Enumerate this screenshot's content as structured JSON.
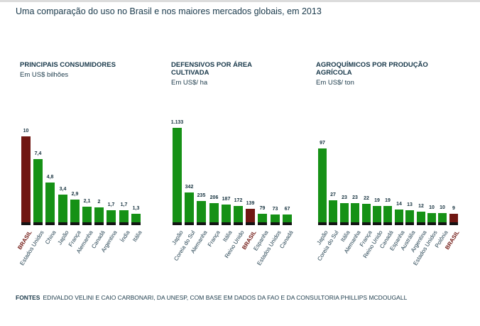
{
  "title": "Uma comparação do uso no Brasil e nos maiores mercados globais, em 2013",
  "footer": {
    "label": "FONTES",
    "text": "EDIVALDO VELINI E CAIO CARBONARI, DA UNESP, COM BASE EM DADOS DA FAO E DA CONSULTORIA PHILLIPS MCDOUGALL"
  },
  "colors": {
    "bar_green": "#169116",
    "bar_highlight_maroon": "#701712",
    "bar_base_black": "#141414",
    "text_dark_teal": "#18384a"
  },
  "highlight_category": "BRASIL",
  "chart_data": [
    {
      "type": "bar",
      "title": "PRINCIPAIS CONSUMIDORES",
      "subtitle": "Em US$ bilhões",
      "ylabel": "US$ bilhões",
      "legend_position": "none",
      "grid": false,
      "categories": [
        "BRASIL",
        "Estados Unidos",
        "China",
        "Japão",
        "França",
        "Alemanha",
        "Canadá",
        "Argentina",
        "Índia",
        "Itália"
      ],
      "values": [
        10,
        7.4,
        4.8,
        3.4,
        2.9,
        2.1,
        2,
        1.7,
        1.7,
        1.3
      ],
      "value_labels": [
        "10",
        "7,4",
        "4,8",
        "3,4",
        "2,9",
        "2,1",
        "2",
        "1,7",
        "1,7",
        "1,3"
      ],
      "highlight_index": 0
    },
    {
      "type": "bar",
      "title": "DEFENSIVOS POR ÁREA CULTIVADA",
      "subtitle": "Em US$/ ha",
      "ylabel": "US$/ ha",
      "legend_position": "none",
      "grid": false,
      "categories": [
        "Japão",
        "Coreia do Sul",
        "Alemanha",
        "França",
        "Itália",
        "Reino Unido",
        "BRASIL",
        "Espanha",
        "Estados Unidos",
        "Canadá"
      ],
      "values": [
        1133,
        342,
        235,
        206,
        187,
        172,
        139,
        79,
        73,
        67
      ],
      "value_labels": [
        "1.133",
        "342",
        "235",
        "206",
        "187",
        "172",
        "139",
        "79",
        "73",
        "67"
      ],
      "highlight_index": 6
    },
    {
      "type": "bar",
      "title": "AGROQUÍMICOS POR PRODUÇÃO AGRÍCOLA",
      "subtitle": "Em US$/ ton",
      "ylabel": "US$/ ton",
      "legend_position": "none",
      "grid": false,
      "categories": [
        "Japão",
        "Coreia do Sul",
        "Itália",
        "Alemanha",
        "França",
        "Reino Unido",
        "Canadá",
        "Espanha",
        "Austrália",
        "Argentina",
        "Estados Unidos",
        "Polônia",
        "BRASIL"
      ],
      "values": [
        97,
        27,
        23,
        23,
        22,
        19,
        19,
        14,
        13,
        12,
        10,
        10,
        9
      ],
      "value_labels": [
        "97",
        "27",
        "23",
        "23",
        "22",
        "19",
        "19",
        "14",
        "13",
        "12",
        "10",
        "10",
        "9"
      ],
      "highlight_index": 12
    }
  ]
}
